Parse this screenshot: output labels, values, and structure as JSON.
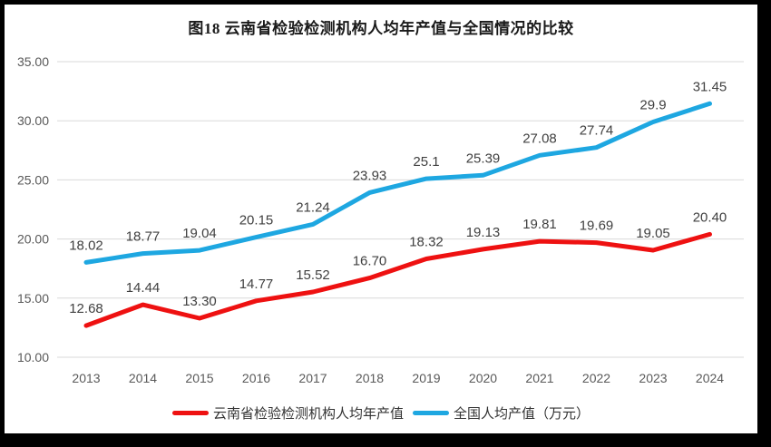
{
  "chart_data": {
    "type": "line",
    "title": "图18  云南省检验检测机构人均年产值与全国情况的比较",
    "categories": [
      "2013",
      "2014",
      "2015",
      "2016",
      "2017",
      "2018",
      "2019",
      "2020",
      "2021",
      "2022",
      "2023",
      "2024"
    ],
    "series": [
      {
        "name": "云南省检验检测机构人均年产值",
        "color": "#ee1111",
        "values": [
          12.68,
          14.44,
          13.3,
          14.77,
          15.52,
          16.7,
          18.32,
          19.13,
          19.81,
          19.69,
          19.05,
          20.4
        ],
        "labels": [
          "12.68",
          "14.44",
          "13.30",
          "14.77",
          "15.52",
          "16.70",
          "18.32",
          "19.13",
          "19.81",
          "19.69",
          "19.05",
          "20.40"
        ]
      },
      {
        "name": "全国人均产值（万元）",
        "color": "#1ea7e1",
        "values": [
          18.02,
          18.77,
          19.04,
          20.15,
          21.24,
          23.93,
          25.1,
          25.39,
          27.08,
          27.74,
          29.9,
          31.45
        ],
        "labels": [
          "18.02",
          "18.77",
          "19.04",
          "20.15",
          "21.24",
          "23.93",
          "25.1",
          "25.39",
          "27.08",
          "27.74",
          "29.9",
          "31.45"
        ]
      }
    ],
    "ylim": [
      10,
      35
    ],
    "y_ticks": [
      {
        "value": 35,
        "label": "35.00"
      },
      {
        "value": 30,
        "label": "30.00"
      },
      {
        "value": 25,
        "label": "25.00"
      },
      {
        "value": 20,
        "label": "20.00"
      },
      {
        "value": 15,
        "label": "15.00"
      },
      {
        "value": 10,
        "label": "10.00"
      }
    ],
    "xlabel": "",
    "ylabel": "",
    "grid": "horizontal",
    "legend_position": "bottom"
  },
  "colors": {
    "gridline": "#d9d9d9",
    "tick_text": "#595959",
    "data_label": "#404040",
    "title_text": "#1a1a1a",
    "card_background": "#ffffff",
    "frame_background": "#000000"
  }
}
